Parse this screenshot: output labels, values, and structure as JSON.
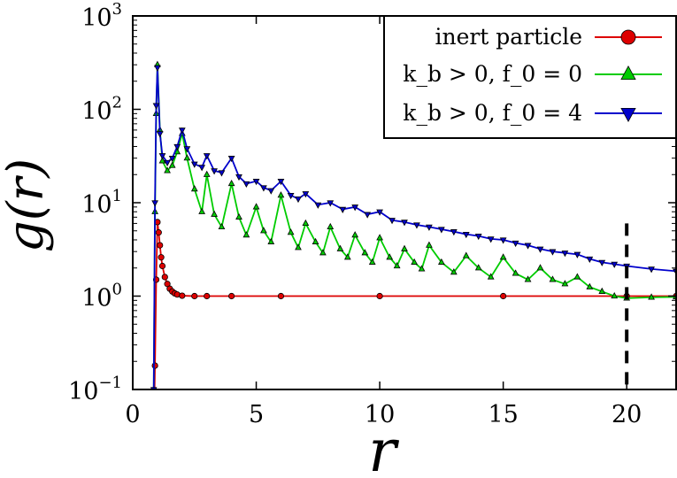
{
  "chart_data": {
    "type": "line",
    "xlabel": "r",
    "ylabel": "g(r)",
    "xlim": [
      0,
      22
    ],
    "ylim": [
      0.1,
      1000
    ],
    "y_scale": "log",
    "x_ticks": [
      0,
      5,
      10,
      15,
      20
    ],
    "x_tick_labels": [
      "0",
      "5",
      "10",
      "15",
      "20"
    ],
    "y_ticks": [
      0.1,
      1,
      10,
      100,
      1000
    ],
    "y_tick_labels": [
      {
        "base": "10",
        "exp": "−1"
      },
      {
        "base": "10",
        "exp": "0"
      },
      {
        "base": "10",
        "exp": "1"
      },
      {
        "base": "10",
        "exp": "2"
      },
      {
        "base": "10",
        "exp": "3"
      }
    ],
    "grid": false,
    "legend_position": "top-right",
    "annotations": [
      {
        "type": "vertical-dashed-line",
        "x": 20,
        "y_from": 0.1,
        "y_to": 6
      }
    ],
    "series": [
      {
        "name": "inert particle",
        "color": "#dd0000",
        "marker": "circle",
        "x": [
          0.85,
          0.9,
          0.95,
          1.0,
          1.05,
          1.1,
          1.15,
          1.2,
          1.3,
          1.4,
          1.5,
          1.6,
          1.7,
          1.8,
          2.0,
          2.5,
          3.0,
          4.0,
          6.0,
          10.0,
          15.0,
          20.0,
          22.0
        ],
        "y": [
          0.03,
          0.18,
          1.5,
          6.2,
          4.8,
          3.5,
          2.6,
          2.1,
          1.6,
          1.35,
          1.2,
          1.12,
          1.07,
          1.04,
          1.01,
          1.0,
          1.0,
          1.0,
          1.0,
          1.0,
          1.0,
          1.0,
          1.0
        ]
      },
      {
        "name": "k_b > 0, f_0 = 0",
        "color": "#00cc00",
        "marker": "triangle-up",
        "x": [
          0.85,
          0.9,
          0.95,
          1.0,
          1.1,
          1.2,
          1.4,
          1.6,
          1.8,
          2.0,
          2.2,
          2.5,
          2.8,
          3.0,
          3.3,
          3.6,
          4.0,
          4.3,
          4.6,
          5.0,
          5.3,
          5.6,
          6.0,
          6.4,
          6.7,
          7.0,
          7.4,
          7.7,
          8.0,
          8.4,
          8.7,
          9.0,
          9.4,
          9.7,
          10.0,
          10.4,
          10.7,
          11.0,
          11.4,
          11.7,
          12.0,
          12.5,
          13.0,
          13.5,
          14.0,
          14.5,
          15.0,
          15.5,
          16.0,
          16.5,
          17.0,
          17.5,
          18.0,
          18.5,
          19.0,
          19.5,
          20.0,
          21.0,
          22.0
        ],
        "y": [
          0.1,
          8,
          90,
          300,
          60,
          28,
          22,
          25,
          35,
          55,
          30,
          14,
          8,
          20,
          7.5,
          5.5,
          16,
          7,
          4.5,
          9,
          5,
          3.8,
          12,
          4.8,
          3.3,
          6,
          3.8,
          2.9,
          5.5,
          3.2,
          2.6,
          4.5,
          2.9,
          2.3,
          4.2,
          2.6,
          2.1,
          3.2,
          2.3,
          1.95,
          3.5,
          2.3,
          1.8,
          2.7,
          2.0,
          1.6,
          2.6,
          1.75,
          1.5,
          2.0,
          1.5,
          1.35,
          1.6,
          1.25,
          1.12,
          1.0,
          0.95,
          0.97,
          0.98
        ]
      },
      {
        "name": "k_b > 0, f_0 = 4",
        "color": "#0000cc",
        "marker": "triangle-down",
        "x": [
          0.85,
          0.9,
          0.95,
          1.0,
          1.1,
          1.2,
          1.4,
          1.6,
          1.8,
          2.0,
          2.2,
          2.5,
          2.8,
          3.0,
          3.3,
          3.6,
          4.0,
          4.3,
          4.6,
          5.0,
          5.3,
          5.6,
          6.0,
          6.4,
          6.7,
          7.0,
          7.5,
          8.0,
          8.5,
          9.0,
          9.5,
          10.0,
          10.5,
          11.0,
          11.5,
          12.0,
          12.5,
          13.0,
          13.5,
          14.0,
          14.5,
          15.0,
          15.5,
          16.0,
          16.5,
          17.0,
          17.5,
          18.0,
          18.5,
          19.0,
          19.5,
          20.0,
          21.0,
          22.0
        ],
        "y": [
          0.1,
          10,
          110,
          280,
          55,
          32,
          27,
          30,
          40,
          60,
          38,
          26,
          24,
          32,
          22,
          21,
          30,
          19,
          16,
          17,
          14.5,
          13.5,
          17,
          12,
          11,
          12.5,
          9.5,
          10,
          8.5,
          9,
          7.5,
          8,
          6.5,
          6.2,
          5.8,
          5.5,
          5.2,
          4.9,
          4.6,
          4.4,
          4.1,
          4.0,
          3.7,
          3.5,
          3.2,
          3.0,
          2.9,
          2.8,
          2.5,
          2.3,
          2.2,
          2.1,
          1.95,
          1.85
        ]
      }
    ]
  }
}
